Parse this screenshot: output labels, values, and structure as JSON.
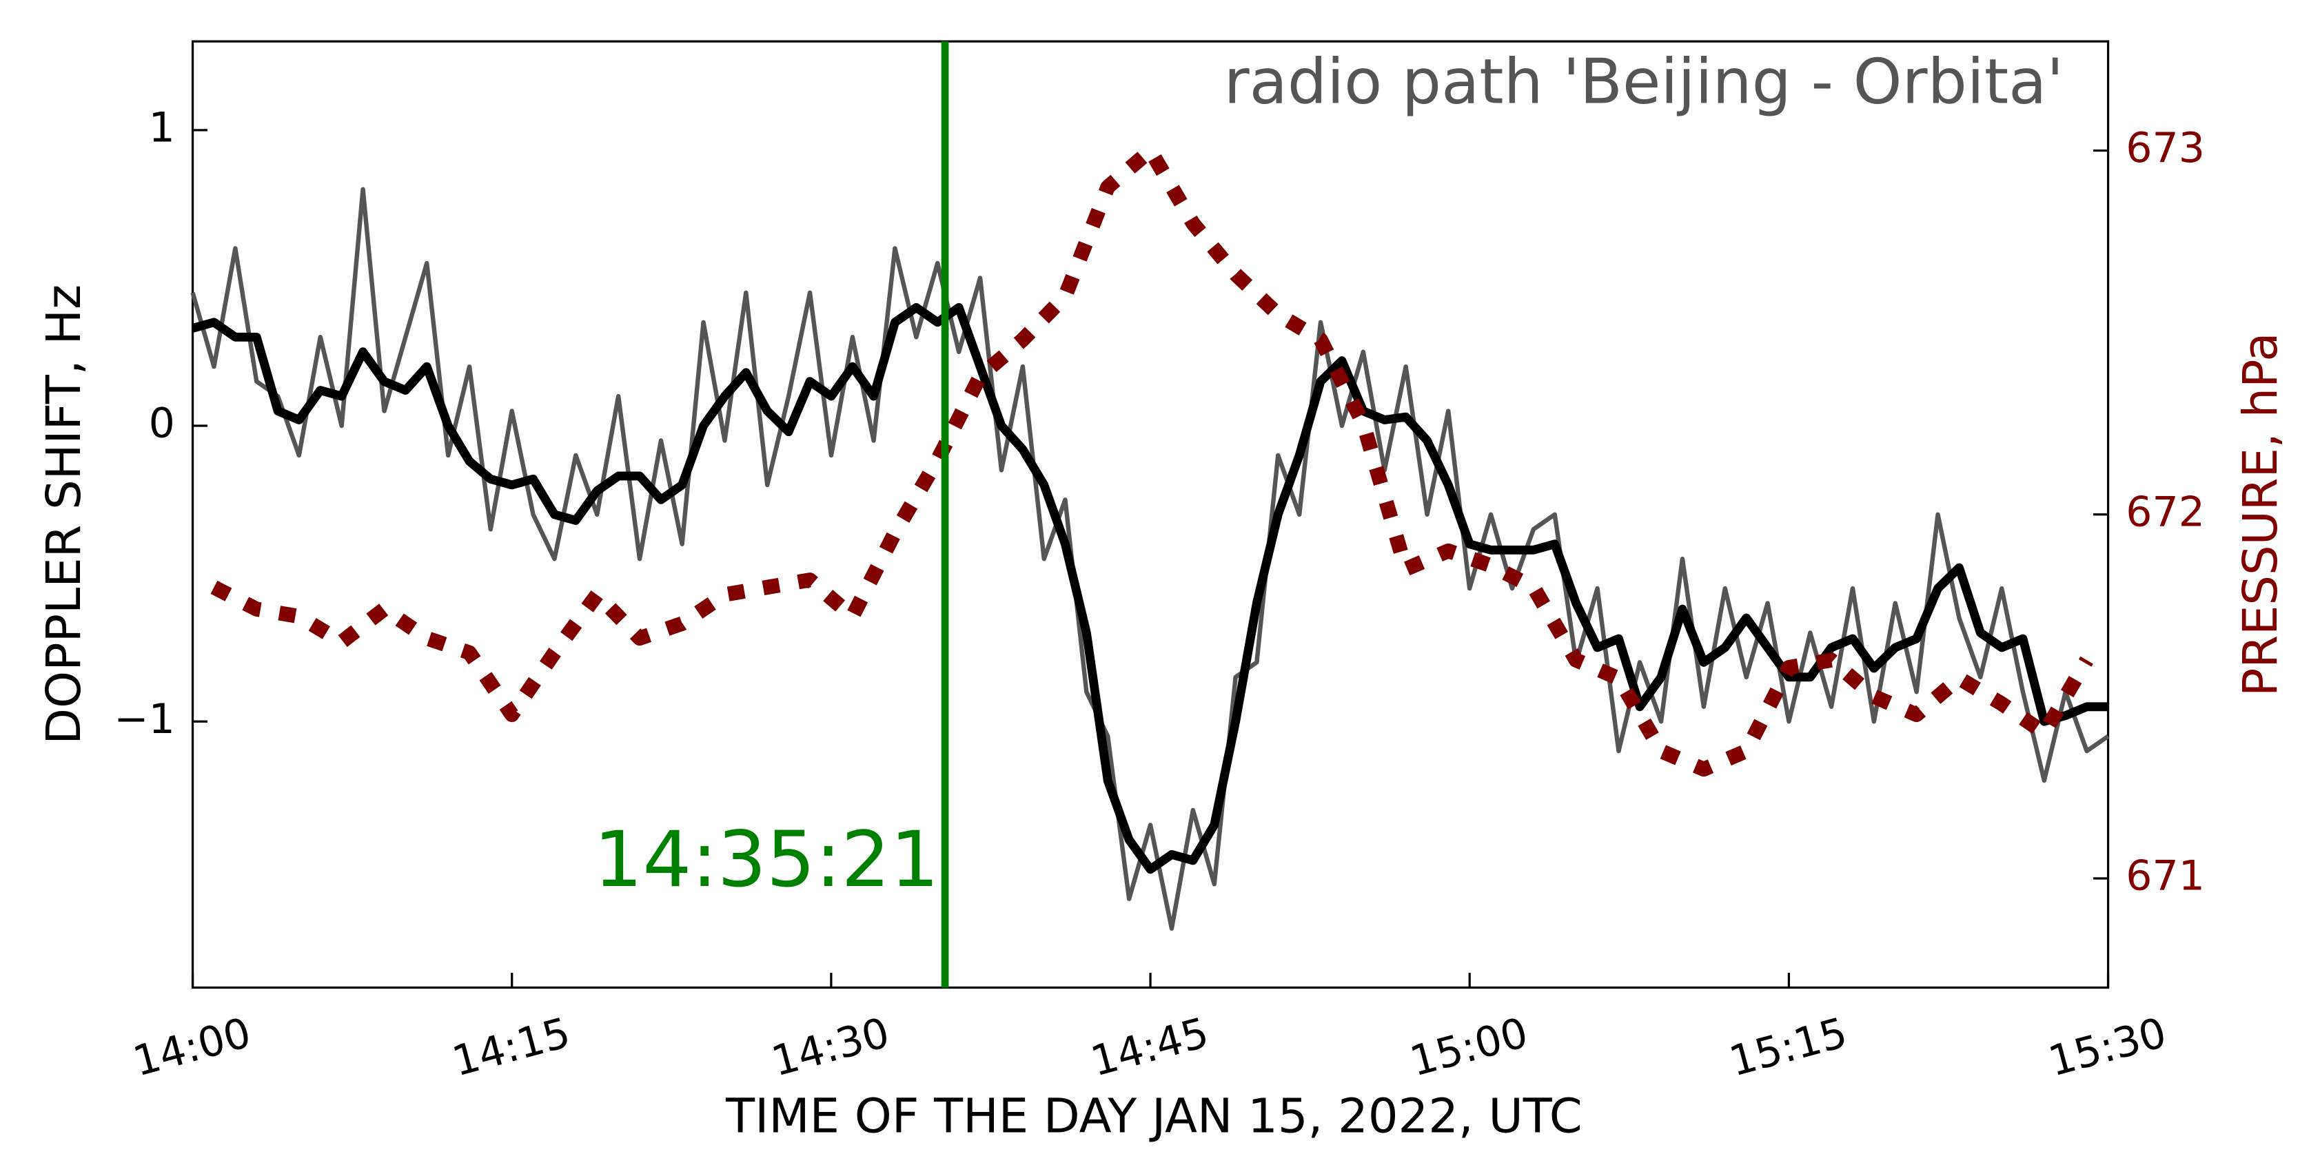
{
  "chart_data": {
    "type": "line",
    "title": "radio path  'Beijing - Orbita'",
    "annotation": "14:35:21",
    "annotation_color": "#008000",
    "xlabel": "TIME OF THE DAY JAN 15, 2022, UTC",
    "ylabel": "DOPPLER  SHIFT,  Hz",
    "y2label": "PRESSURE, hPa",
    "y2color": "#800000",
    "xlim": [
      "14:00",
      "15:30"
    ],
    "xticks": [
      "14:00",
      "14:15",
      "14:30",
      "14:45",
      "15:00",
      "15:15",
      "15:30"
    ],
    "ylim": [
      -1.9,
      1.3
    ],
    "yticks": [
      {
        "value": -1,
        "label": "−1"
      },
      0,
      1
    ],
    "y2lim": [
      670.7,
      673.3
    ],
    "y2ticks": [
      671,
      672,
      673
    ],
    "x": [
      "14:00",
      "14:01",
      "14:02",
      "14:03",
      "14:04",
      "14:05",
      "14:06",
      "14:07",
      "14:08",
      "14:09",
      "14:10",
      "14:11",
      "14:12",
      "14:13",
      "14:14",
      "14:15",
      "14:16",
      "14:17",
      "14:18",
      "14:19",
      "14:20",
      "14:21",
      "14:22",
      "14:23",
      "14:24",
      "14:25",
      "14:26",
      "14:27",
      "14:28",
      "14:29",
      "14:30",
      "14:31",
      "14:32",
      "14:33",
      "14:34",
      "14:35",
      "14:36",
      "14:37",
      "14:38",
      "14:39",
      "14:40",
      "14:41",
      "14:42",
      "14:43",
      "14:44",
      "14:45",
      "14:46",
      "14:47",
      "14:48",
      "14:49",
      "14:50",
      "14:51",
      "14:52",
      "14:53",
      "14:54",
      "14:55",
      "14:56",
      "14:57",
      "14:58",
      "14:59",
      "15:00",
      "15:01",
      "15:02",
      "15:03",
      "15:04",
      "15:05",
      "15:06",
      "15:07",
      "15:08",
      "15:09",
      "15:10",
      "15:11",
      "15:12",
      "15:13",
      "15:14",
      "15:15",
      "15:16",
      "15:17",
      "15:18",
      "15:19",
      "15:20",
      "15:21",
      "15:22",
      "15:23",
      "15:24",
      "15:25",
      "15:26",
      "15:27",
      "15:28",
      "15:29",
      "15:30"
    ],
    "series": [
      {
        "color": "#555555",
        "width": 3,
        "values": [
          0.45,
          0.2,
          0.6,
          0.15,
          0.1,
          -0.1,
          0.3,
          0.0,
          0.8,
          0.05,
          0.3,
          0.55,
          -0.1,
          0.2,
          -0.35,
          0.05,
          -0.3,
          -0.45,
          -0.1,
          -0.3,
          0.1,
          -0.45,
          -0.05,
          -0.4,
          0.35,
          -0.05,
          0.45,
          -0.2,
          0.1,
          0.45,
          -0.1,
          0.3,
          -0.05,
          0.6,
          0.3,
          0.55,
          0.25,
          0.5,
          -0.15,
          0.2,
          -0.45,
          -0.25,
          -0.9,
          -1.05,
          -1.6,
          -1.35,
          -1.7,
          -1.3,
          -1.55,
          -0.85,
          -0.8,
          -0.1,
          -0.3,
          0.35,
          0.0,
          0.25,
          -0.15,
          0.2,
          -0.3,
          0.05,
          -0.55,
          -0.3,
          -0.55,
          -0.35,
          -0.3,
          -0.8,
          -0.55,
          -1.1,
          -0.8,
          -1.0,
          -0.45,
          -0.95,
          -0.55,
          -0.85,
          -0.6,
          -1.0,
          -0.7,
          -0.95,
          -0.55,
          -1.0,
          -0.6,
          -0.9,
          -0.3,
          -0.65,
          -0.85,
          -0.55,
          -0.9,
          -1.2,
          -0.9,
          -1.1,
          -1.05
        ]
      },
      {
        "color": "#000000",
        "width": 6,
        "values": [
          0.33,
          0.35,
          0.3,
          0.3,
          0.05,
          0.02,
          0.12,
          0.1,
          0.25,
          0.15,
          0.12,
          0.2,
          0.0,
          -0.12,
          -0.18,
          -0.2,
          -0.18,
          -0.3,
          -0.32,
          -0.22,
          -0.17,
          -0.17,
          -0.25,
          -0.2,
          0.0,
          0.1,
          0.18,
          0.05,
          -0.02,
          0.15,
          0.1,
          0.2,
          0.1,
          0.35,
          0.4,
          0.35,
          0.4,
          0.2,
          0.0,
          -0.08,
          -0.2,
          -0.4,
          -0.7,
          -1.2,
          -1.4,
          -1.5,
          -1.45,
          -1.47,
          -1.35,
          -1.0,
          -0.6,
          -0.3,
          -0.1,
          0.15,
          0.22,
          0.05,
          0.02,
          0.03,
          -0.05,
          -0.2,
          -0.4,
          -0.42,
          -0.42,
          -0.42,
          -0.4,
          -0.6,
          -0.75,
          -0.72,
          -0.95,
          -0.85,
          -0.62,
          -0.8,
          -0.75,
          -0.65,
          -0.75,
          -0.85,
          -0.85,
          -0.75,
          -0.72,
          -0.82,
          -0.75,
          -0.72,
          -0.55,
          -0.48,
          -0.7,
          -0.75,
          -0.72,
          -1.0,
          -0.98,
          -0.95,
          -0.95
        ]
      },
      {
        "color": "#800000",
        "width": 10,
        "dashed": true,
        "axis": "y2",
        "x": [
          "14:01",
          "14:03",
          "14:05",
          "14:07",
          "14:09",
          "14:11",
          "14:13",
          "14:15",
          "14:17",
          "14:19",
          "14:21",
          "14:23",
          "14:25",
          "14:27",
          "14:29",
          "14:31",
          "14:33",
          "14:35",
          "14:37",
          "14:39",
          "14:41",
          "14:43",
          "14:45",
          "14:47",
          "14:49",
          "14:51",
          "14:53",
          "14:55",
          "14:57",
          "14:59",
          "15:01",
          "15:03",
          "15:05",
          "15:07",
          "15:09",
          "15:11",
          "15:13",
          "15:15",
          "15:17",
          "15:19",
          "15:21",
          "15:23",
          "15:25",
          "15:27",
          "15:29"
        ],
        "values": [
          671.8,
          671.74,
          671.72,
          671.65,
          671.74,
          671.66,
          671.62,
          671.45,
          671.62,
          671.78,
          671.66,
          671.7,
          671.78,
          671.8,
          671.82,
          671.72,
          671.95,
          672.15,
          672.38,
          672.48,
          672.6,
          672.9,
          673.0,
          672.8,
          672.66,
          672.55,
          672.48,
          672.25,
          671.85,
          671.9,
          671.86,
          671.8,
          671.6,
          671.55,
          671.35,
          671.3,
          671.35,
          671.58,
          671.6,
          671.5,
          671.45,
          671.55,
          671.48,
          671.4,
          671.6
        ]
      }
    ]
  }
}
